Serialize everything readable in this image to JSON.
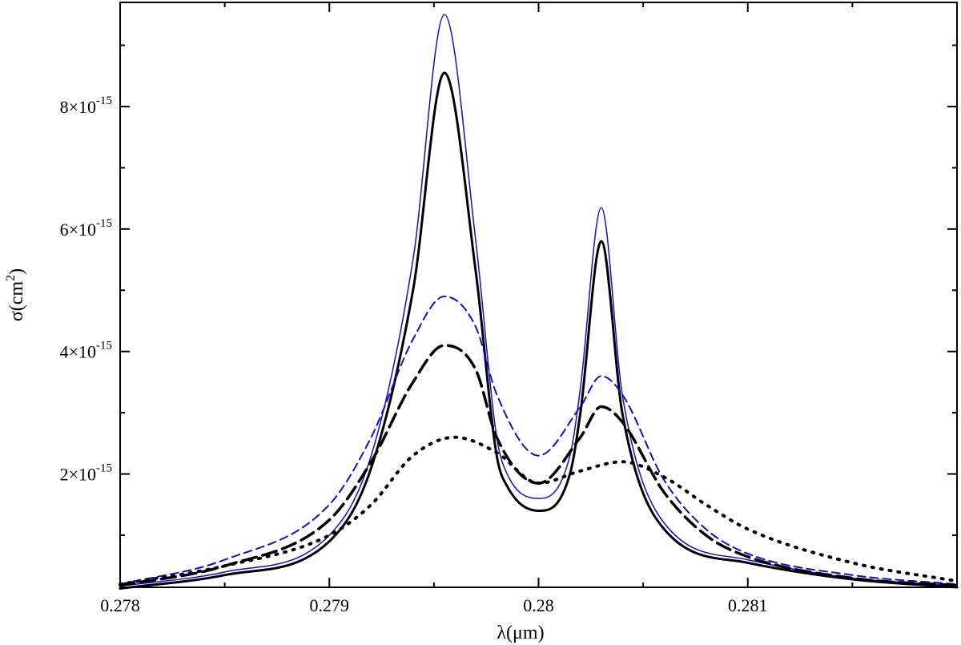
{
  "chart_data": {
    "type": "line",
    "title": "",
    "xlabel": "λ(μm)",
    "ylabel_main": "σ(cm",
    "ylabel_sup": "2",
    "ylabel_close": ")",
    "xlim": [
      0.278,
      0.282
    ],
    "ylim": [
      1.5e-16,
      9.7e-15
    ],
    "x_ticks": [
      {
        "value": 0.278,
        "label": "0.278"
      },
      {
        "value": 0.279,
        "label": "0.279"
      },
      {
        "value": 0.28,
        "label": "0.28"
      },
      {
        "value": 0.281,
        "label": "0.281"
      }
    ],
    "y_ticks": [
      {
        "value": 2e-15,
        "mantissa": "2×10",
        "exponent": "-15"
      },
      {
        "value": 4e-15,
        "mantissa": "4×10",
        "exponent": "-15"
      },
      {
        "value": 6e-15,
        "mantissa": "6×10",
        "exponent": "-15"
      },
      {
        "value": 8e-15,
        "mantissa": "8×10",
        "exponent": "-15"
      }
    ],
    "x_minor_ticks": [
      0.2785,
      0.2795,
      0.2805,
      0.2815
    ],
    "y_minor_ticks": [
      1e-15,
      3e-15,
      5e-15,
      7e-15,
      9e-15
    ],
    "grid": false,
    "legend": "none",
    "series": [
      {
        "color": "#1010c8",
        "width": 1.5,
        "dash": "",
        "x": [
          0.278,
          0.2785,
          0.279,
          0.2792,
          0.2794,
          0.27955,
          0.2797,
          0.2798,
          0.27985,
          0.28,
          0.28015,
          0.2802,
          0.2803,
          0.2804,
          0.2806,
          0.281,
          0.2815,
          0.282
        ],
        "y": [
          1.7e-16,
          4e-16,
          1e-15,
          2.3e-15,
          5.5e-15,
          9.5e-15,
          5.8e-15,
          2.6e-15,
          2e-15,
          1.6e-15,
          2.3e-15,
          3.4e-15,
          6.35e-15,
          3.3e-15,
          1.2e-15,
          6e-16,
          3e-16,
          1.8e-16
        ]
      },
      {
        "color": "#000000",
        "width": 3,
        "dash": "",
        "x": [
          0.278,
          0.2785,
          0.279,
          0.2792,
          0.2794,
          0.27955,
          0.2797,
          0.2798,
          0.27985,
          0.28,
          0.28015,
          0.2802,
          0.2803,
          0.2804,
          0.2806,
          0.281,
          0.2815,
          0.282
        ],
        "y": [
          1.3e-16,
          3.5e-16,
          9e-16,
          2.1e-15,
          5e-15,
          8.55e-15,
          5.3e-15,
          2.3e-15,
          1.8e-15,
          1.4e-15,
          2e-15,
          3e-15,
          5.8e-15,
          3e-15,
          1.1e-15,
          5.5e-16,
          2.8e-16,
          1.5e-16
        ]
      },
      {
        "color": "#1010c8",
        "width": 2,
        "dash": "10 6",
        "x": [
          0.278,
          0.2785,
          0.279,
          0.2792,
          0.2794,
          0.27955,
          0.2797,
          0.2798,
          0.28,
          0.2802,
          0.2803,
          0.2804,
          0.2806,
          0.2808,
          0.281,
          0.2815,
          0.282
        ],
        "y": [
          2e-16,
          6e-16,
          1.5e-15,
          2.6e-15,
          4.2e-15,
          4.9e-15,
          4.4e-15,
          3.3e-15,
          2.3e-15,
          3.1e-15,
          3.6e-15,
          3.3e-15,
          1.9e-15,
          1.1e-15,
          7e-16,
          3.5e-16,
          2e-16
        ]
      },
      {
        "color": "#000000",
        "width": 3.5,
        "dash": "18 8",
        "x": [
          0.278,
          0.2785,
          0.279,
          0.2792,
          0.2794,
          0.27955,
          0.2797,
          0.2798,
          0.28,
          0.2802,
          0.2803,
          0.2804,
          0.2806,
          0.2808,
          0.281,
          0.2815,
          0.282
        ],
        "y": [
          1.8e-16,
          5e-16,
          1.25e-15,
          2.2e-15,
          3.5e-15,
          4.1e-15,
          3.7e-15,
          2.6e-15,
          1.85e-15,
          2.6e-15,
          3.1e-15,
          2.85e-15,
          1.7e-15,
          1e-15,
          6.5e-16,
          3e-16,
          1.8e-16
        ]
      },
      {
        "color": "#000000",
        "width": 4,
        "dash": "2 9",
        "x": [
          0.278,
          0.2785,
          0.279,
          0.2792,
          0.2794,
          0.2796,
          0.2798,
          0.28,
          0.2802,
          0.2804,
          0.2806,
          0.2808,
          0.281,
          0.2815,
          0.282
        ],
        "y": [
          2e-16,
          5e-16,
          1e-15,
          1.5e-15,
          2.3e-15,
          2.6e-15,
          2.35e-15,
          1.85e-15,
          2.05e-15,
          2.2e-15,
          1.95e-15,
          1.5e-15,
          1.1e-15,
          5.5e-16,
          2.5e-16
        ]
      }
    ]
  }
}
